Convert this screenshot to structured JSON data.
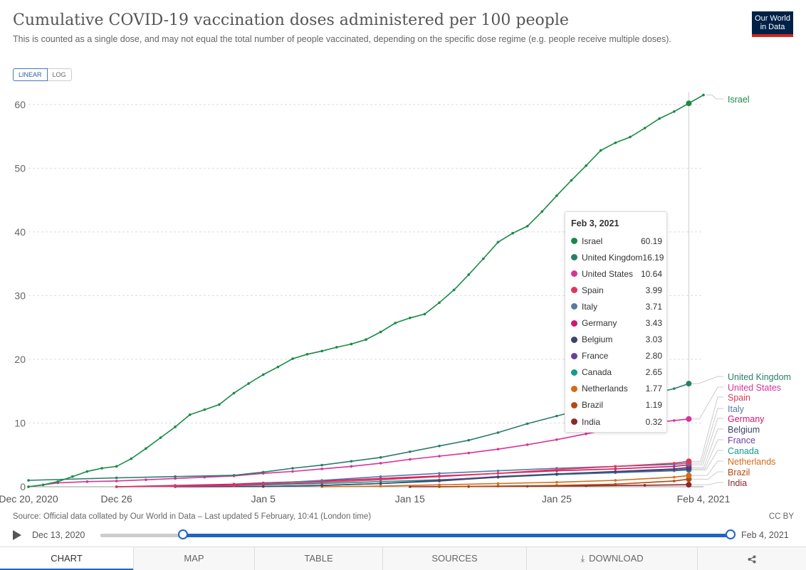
{
  "header": {
    "title": "Cumulative COVID-19 vaccination doses administered per 100 people",
    "subtitle": "This is counted as a single dose, and may not equal the total number of people vaccinated, depending on the specific dose regime (e.g. people receive multiple doses).",
    "logo_line1": "Our World",
    "logo_line2": "in Data"
  },
  "scale_toggle": {
    "linear": "LINEAR",
    "log": "LOG"
  },
  "tooltip": {
    "date": "Feb 3, 2021",
    "rows": [
      {
        "name": "Israel",
        "value": "60.19",
        "color": "#1a8a46"
      },
      {
        "name": "United Kingdom",
        "value": "16.19",
        "color": "#2a7d6b"
      },
      {
        "name": "United States",
        "value": "10.64",
        "color": "#d6349a"
      },
      {
        "name": "Spain",
        "value": "3.99",
        "color": "#e0365a"
      },
      {
        "name": "Italy",
        "value": "3.71",
        "color": "#5878a8"
      },
      {
        "name": "Germany",
        "value": "3.43",
        "color": "#d5166a"
      },
      {
        "name": "Belgium",
        "value": "3.03",
        "color": "#3b4668"
      },
      {
        "name": "France",
        "value": "2.80",
        "color": "#6c3ea0"
      },
      {
        "name": "Canada",
        "value": "2.65",
        "color": "#159a8e"
      },
      {
        "name": "Netherlands",
        "value": "1.77",
        "color": "#d26c1a"
      },
      {
        "name": "Brazil",
        "value": "1.19",
        "color": "#b7470d"
      },
      {
        "name": "India",
        "value": "0.32",
        "color": "#8c2a2a"
      }
    ]
  },
  "chart_data": {
    "type": "line",
    "title": "Cumulative COVID-19 vaccination doses administered per 100 people",
    "xlabel": "",
    "ylabel": "",
    "x_ticks": [
      "Dec 20, 2020",
      "Dec 26",
      "Jan 5",
      "Jan 15",
      "Jan 25",
      "Feb 4, 2021"
    ],
    "x_tick_days": [
      0,
      6,
      16,
      26,
      36,
      46
    ],
    "x_range": [
      0,
      46
    ],
    "y_ticks": [
      "0",
      "10",
      "20",
      "30",
      "40",
      "50",
      "60"
    ],
    "ylim": [
      0,
      62
    ],
    "hover_day": 45,
    "series": [
      {
        "name": "Israel",
        "color": "#1a8a46",
        "days": [
          0,
          1,
          2,
          3,
          4,
          5,
          6,
          7,
          8,
          9,
          10,
          11,
          12,
          13,
          14,
          15,
          16,
          17,
          18,
          19,
          20,
          21,
          22,
          23,
          24,
          25,
          26,
          27,
          28,
          29,
          30,
          31,
          32,
          33,
          34,
          35,
          36,
          37,
          38,
          39,
          40,
          41,
          42,
          43,
          44,
          45,
          46
        ],
        "values": [
          0.0,
          0.3,
          0.8,
          1.6,
          2.4,
          2.9,
          3.2,
          4.4,
          6.0,
          7.7,
          9.4,
          11.3,
          12.1,
          12.9,
          14.7,
          16.2,
          17.6,
          18.8,
          20.1,
          20.8,
          21.3,
          21.9,
          22.4,
          23.1,
          24.3,
          25.7,
          26.5,
          27.1,
          28.9,
          30.9,
          33.3,
          35.8,
          38.4,
          39.8,
          40.9,
          43.2,
          45.7,
          48.1,
          50.4,
          52.8,
          54.0,
          54.9,
          56.3,
          57.8,
          58.9,
          60.19,
          61.5
        ]
      },
      {
        "name": "United Kingdom",
        "color": "#2a7d6b",
        "days": [
          0,
          6,
          10,
          14,
          16,
          18,
          20,
          22,
          24,
          26,
          28,
          30,
          32,
          34,
          36,
          38,
          40,
          42,
          44,
          45
        ],
        "values": [
          1.0,
          1.4,
          1.6,
          1.8,
          2.3,
          2.9,
          3.4,
          4.0,
          4.6,
          5.5,
          6.4,
          7.3,
          8.5,
          9.9,
          11.1,
          12.3,
          13.3,
          14.3,
          15.4,
          16.19
        ]
      },
      {
        "name": "United States",
        "color": "#d6349a",
        "days": [
          0,
          2,
          4,
          6,
          8,
          10,
          12,
          14,
          16,
          18,
          20,
          22,
          24,
          26,
          28,
          30,
          32,
          34,
          36,
          38,
          40,
          42,
          44,
          45
        ],
        "values": [
          0.0,
          0.6,
          0.8,
          0.9,
          1.1,
          1.3,
          1.5,
          1.7,
          2.1,
          2.4,
          2.8,
          3.2,
          3.7,
          4.3,
          4.8,
          5.3,
          5.9,
          6.6,
          7.4,
          8.3,
          9.2,
          9.9,
          10.4,
          10.64
        ]
      },
      {
        "name": "Spain",
        "color": "#e0365a",
        "days": [
          6,
          10,
          14,
          16,
          20,
          24,
          28,
          32,
          36,
          40,
          44,
          45
        ],
        "values": [
          0.0,
          0.05,
          0.2,
          0.4,
          0.7,
          1.1,
          1.6,
          2.1,
          2.7,
          3.2,
          3.7,
          3.99
        ]
      },
      {
        "name": "Italy",
        "color": "#5878a8",
        "days": [
          6,
          10,
          14,
          16,
          20,
          24,
          28,
          32,
          36,
          40,
          44,
          45
        ],
        "values": [
          0.0,
          0.1,
          0.2,
          0.5,
          1.0,
          1.6,
          2.1,
          2.5,
          2.9,
          3.2,
          3.5,
          3.71
        ]
      },
      {
        "name": "Germany",
        "color": "#d5166a",
        "days": [
          6,
          10,
          14,
          16,
          20,
          24,
          28,
          32,
          36,
          40,
          44,
          45
        ],
        "values": [
          0.0,
          0.2,
          0.4,
          0.6,
          0.9,
          1.3,
          1.7,
          2.1,
          2.5,
          2.8,
          3.2,
          3.43
        ]
      },
      {
        "name": "Belgium",
        "color": "#3b4668",
        "days": [
          10,
          16,
          20,
          24,
          28,
          32,
          36,
          40,
          44,
          45
        ],
        "values": [
          0.0,
          0.05,
          0.2,
          0.5,
          0.9,
          1.5,
          2.0,
          2.4,
          2.8,
          3.03
        ]
      },
      {
        "name": "France",
        "color": "#6c3ea0",
        "days": [
          10,
          16,
          20,
          24,
          28,
          32,
          36,
          40,
          44,
          45
        ],
        "values": [
          0.0,
          0.03,
          0.2,
          0.5,
          1.0,
          1.6,
          2.0,
          2.3,
          2.6,
          2.8
        ]
      },
      {
        "name": "Canada",
        "color": "#159a8e",
        "days": [
          6,
          10,
          14,
          16,
          20,
          24,
          28,
          32,
          36,
          40,
          44,
          45
        ],
        "values": [
          0.0,
          0.1,
          0.2,
          0.3,
          0.5,
          0.8,
          1.1,
          1.5,
          1.9,
          2.2,
          2.5,
          2.65
        ]
      },
      {
        "name": "Netherlands",
        "color": "#d26c1a",
        "days": [
          20,
          24,
          28,
          32,
          36,
          40,
          44,
          45
        ],
        "values": [
          0.0,
          0.1,
          0.3,
          0.5,
          0.7,
          1.0,
          1.5,
          1.77
        ]
      },
      {
        "name": "Brazil",
        "color": "#b7470d",
        "days": [
          28,
          32,
          36,
          40,
          44,
          45
        ],
        "values": [
          0.0,
          0.1,
          0.2,
          0.4,
          0.9,
          1.19
        ]
      },
      {
        "name": "India",
        "color": "#8c2a2a",
        "days": [
          26,
          30,
          34,
          38,
          42,
          45
        ],
        "values": [
          0.0,
          0.03,
          0.08,
          0.15,
          0.24,
          0.32
        ]
      }
    ],
    "legend_labels": [
      "Israel",
      "United Kingdom",
      "United States",
      "Spain",
      "Italy",
      "Germany",
      "Belgium",
      "France",
      "Canada",
      "Netherlands",
      "Brazil",
      "India"
    ]
  },
  "footer": {
    "source": "Source: Official data collated by Our World in Data – Last updated 5 February, 10:41 (London time)",
    "license": "CC BY",
    "timeline_start": "Dec 13, 2020",
    "timeline_end": "Feb 4, 2021"
  },
  "tabs": [
    {
      "label": "CHART"
    },
    {
      "label": "MAP"
    },
    {
      "label": "TABLE"
    },
    {
      "label": "SOURCES"
    },
    {
      "label": "DOWNLOAD"
    },
    {
      "label": "share-icon"
    }
  ]
}
